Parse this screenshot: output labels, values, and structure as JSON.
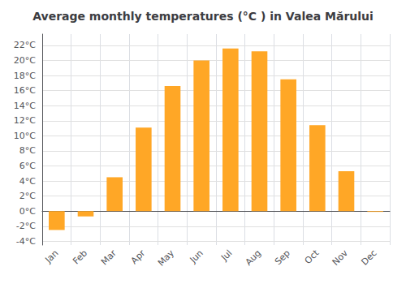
{
  "chart_data": {
    "type": "bar",
    "title": "Average monthly temperatures (°C ) in Valea Mărului",
    "categories": [
      "Jan",
      "Feb",
      "Mar",
      "Apr",
      "May",
      "Jun",
      "Jul",
      "Aug",
      "Sep",
      "Oct",
      "Nov",
      "Dec"
    ],
    "values": [
      -2.5,
      -0.7,
      4.5,
      11.1,
      16.6,
      20.0,
      21.6,
      21.2,
      17.5,
      11.4,
      5.3,
      -0.1
    ],
    "color": "#FFA726",
    "ylim": [
      -4.5,
      23.5
    ],
    "yticks": [
      {
        "value": -4,
        "label": "-4°C"
      },
      {
        "value": -2,
        "label": "-2°C"
      },
      {
        "value": 0,
        "label": "0°C"
      },
      {
        "value": 2,
        "label": "2°C"
      },
      {
        "value": 4,
        "label": "4°C"
      },
      {
        "value": 6,
        "label": "6°C"
      },
      {
        "value": 8,
        "label": "8°C"
      },
      {
        "value": 10,
        "label": "10°C"
      },
      {
        "value": 12,
        "label": "12°C"
      },
      {
        "value": 14,
        "label": "14°C"
      },
      {
        "value": 16,
        "label": "16°C"
      },
      {
        "value": 18,
        "label": "18°C"
      },
      {
        "value": 20,
        "label": "20°C"
      },
      {
        "value": 22,
        "label": "22°C"
      }
    ],
    "grid": true
  }
}
